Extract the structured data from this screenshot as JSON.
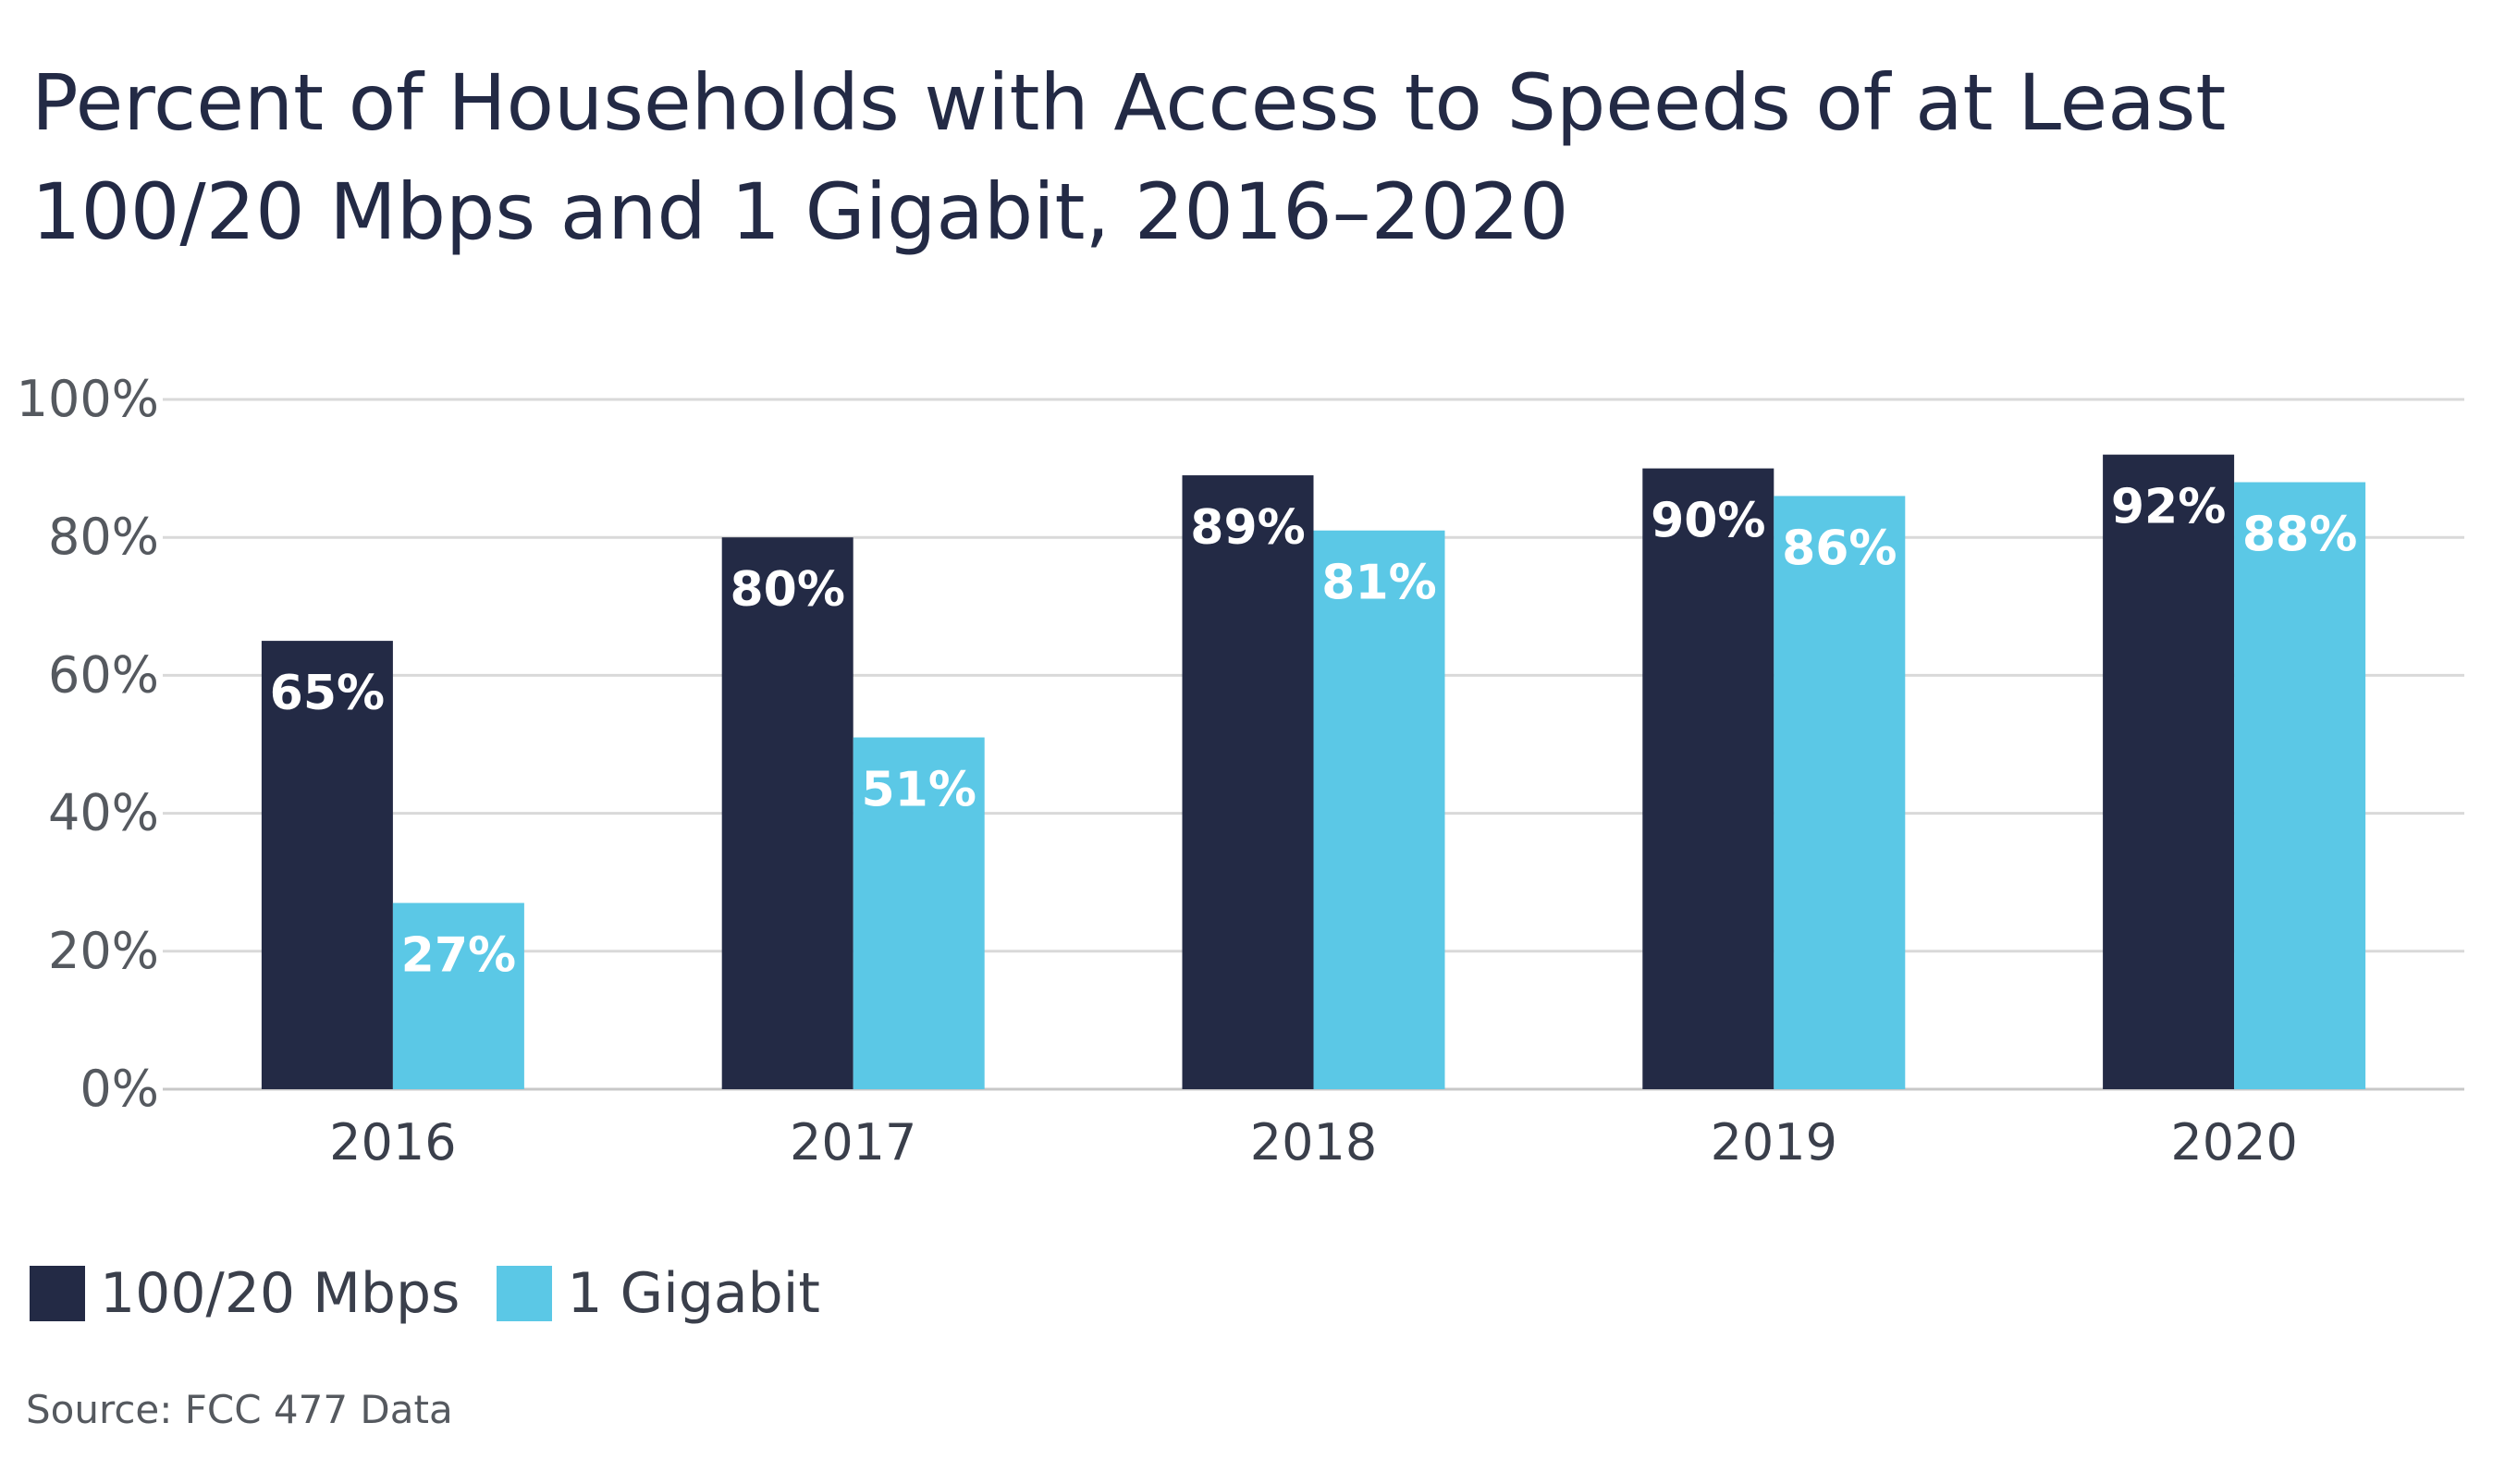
{
  "chart_data": {
    "type": "bar",
    "title_lines": [
      "Percent of Households with Access to Speeds of at Least",
      "100/20 Mbps and 1 Gigabit, 2016–2020"
    ],
    "categories": [
      "2016",
      "2017",
      "2018",
      "2019",
      "2020"
    ],
    "series": [
      {
        "name": "100/20 Mbps",
        "color": "#232a45",
        "values": [
          65,
          80,
          89,
          90,
          92
        ],
        "labels": [
          "65%",
          "80%",
          "89%",
          "90%",
          "92%"
        ]
      },
      {
        "name": "1 Gigabit",
        "color": "#5bc8e6",
        "values": [
          27,
          51,
          81,
          86,
          88
        ],
        "labels": [
          "27%",
          "51%",
          "81%",
          "86%",
          "88%"
        ]
      }
    ],
    "ylim": [
      0,
      100
    ],
    "yticks": [
      0,
      20,
      40,
      60,
      80,
      100
    ],
    "ytick_labels": [
      "0%",
      "20%",
      "40%",
      "60%",
      "80%",
      "100%"
    ],
    "grid": true,
    "legend_position": "bottom-left",
    "xlabel": "",
    "ylabel": ""
  },
  "source": "Source: FCC 477 Data"
}
